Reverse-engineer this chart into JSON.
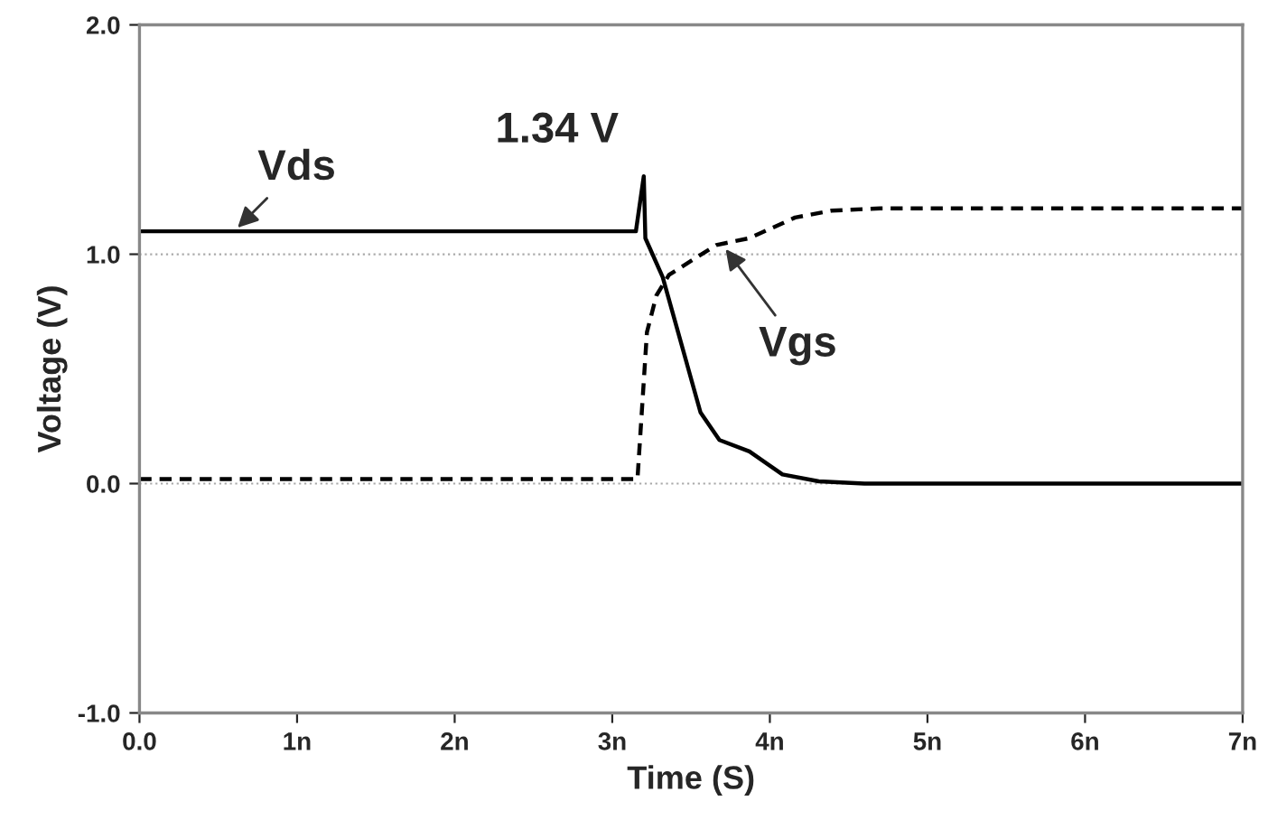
{
  "chart_data": {
    "type": "line",
    "xlabel": "Time (S)",
    "ylabel": "Voltage (V)",
    "xlim": [
      0,
      7
    ],
    "xticks": [
      {
        "value": 0,
        "label": "0.0"
      },
      {
        "value": 1,
        "label": "1n"
      },
      {
        "value": 2,
        "label": "2n"
      },
      {
        "value": 3,
        "label": "3n"
      },
      {
        "value": 4,
        "label": "4n"
      },
      {
        "value": 5,
        "label": "5n"
      },
      {
        "value": 6,
        "label": "6n"
      },
      {
        "value": 7,
        "label": "7n"
      }
    ],
    "ylim": [
      -1,
      2
    ],
    "yticks": [
      {
        "value": -1,
        "label": "-1.0"
      },
      {
        "value": 0,
        "label": "0.0"
      },
      {
        "value": 1,
        "label": "1.0"
      },
      {
        "value": 2,
        "label": "2.0"
      }
    ],
    "grid": false,
    "legend": false,
    "series": [
      {
        "color": "#000000",
        "line_style": "solid",
        "x": [
          0,
          3.15,
          3.2,
          3.21,
          3.32,
          3.56,
          3.68,
          3.87,
          4.08,
          4.31,
          4.6,
          7
        ],
        "values": [
          1.1,
          1.1,
          1.34,
          1.07,
          0.9,
          0.31,
          0.19,
          0.14,
          0.04,
          0.01,
          0,
          0
        ]
      },
      {
        "color": "#000000",
        "line_style": "dashed",
        "x": [
          0,
          3.16,
          3.22,
          3.28,
          3.36,
          3.66,
          3.87,
          4.16,
          4.39,
          4.7,
          7
        ],
        "values": [
          0.02,
          0.02,
          0.66,
          0.82,
          0.91,
          1.04,
          1.07,
          1.16,
          1.19,
          1.2,
          1.2
        ]
      }
    ],
    "ref_lines": [
      {
        "axis": "y",
        "value": 1,
        "color": "#aaaaaa",
        "line_style": "dotted"
      },
      {
        "axis": "y",
        "value": 0,
        "color": "#aaaaaa",
        "line_style": "dotted"
      }
    ],
    "annotations": [
      {
        "text": "Vds",
        "x": 0.6,
        "y": 1.1
      },
      {
        "text": "1.34 V",
        "x": 3.2,
        "y": 1.34
      },
      {
        "text": "Vgs",
        "x": 3.7,
        "y": 1.04
      }
    ]
  }
}
